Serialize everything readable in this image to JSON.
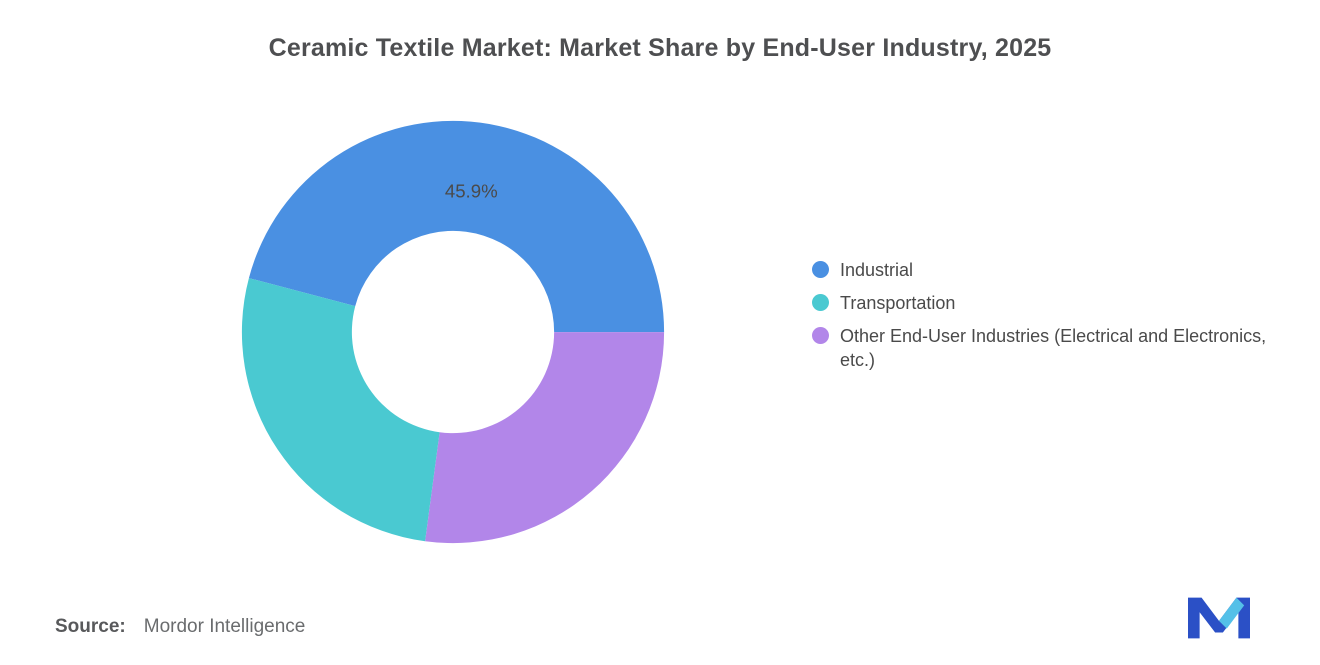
{
  "title": "Ceramic Textile Market: Market Share by End-User Industry, 2025",
  "source": {
    "prefix": "Source:",
    "text": "Mordor Intelligence"
  },
  "logo": {
    "name": "mordor-intelligence-logo",
    "color_dark": "#2B50C6",
    "color_light": "#54C0E8"
  },
  "chart_data": {
    "type": "pie",
    "donut": true,
    "title": "Ceramic Textile Market: Market Share by End-User Industry, 2025",
    "legend_position": "right",
    "start_angle_deg": -75.2,
    "clockwise_draw_order": [
      0,
      2,
      1
    ],
    "hole_radius_ratio": 0.48,
    "segments": [
      {
        "name": "Industrial",
        "value": 45.9,
        "label": "45.9%",
        "color": "#4A90E2"
      },
      {
        "name": "Transportation",
        "value": 27.0,
        "label": "",
        "color": "#4AC9D1"
      },
      {
        "name": "Other End-User Industries (Electrical and Electronics, etc.)",
        "value": 27.1,
        "label": "",
        "color": "#B286E9"
      }
    ]
  }
}
